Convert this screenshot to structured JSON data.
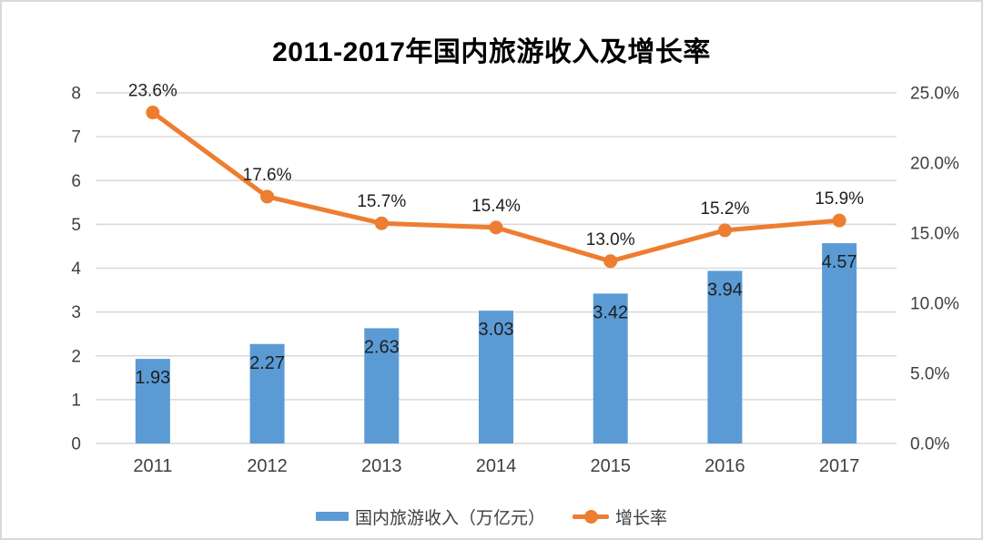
{
  "chart_data": {
    "type": "bar+line combo",
    "title": "2011-2017年国内旅游收入及增长率",
    "categories": [
      "2011",
      "2012",
      "2013",
      "2014",
      "2015",
      "2016",
      "2017"
    ],
    "series": [
      {
        "name": "国内旅游收入（万亿元）",
        "type": "bar",
        "axis": "left",
        "color": "#5B9BD5",
        "values": [
          1.93,
          2.27,
          2.63,
          3.03,
          3.42,
          3.94,
          4.57
        ],
        "labels": [
          "1.93",
          "2.27",
          "2.63",
          "3.03",
          "3.42",
          "3.94",
          "4.57"
        ]
      },
      {
        "name": "增长率",
        "type": "line",
        "axis": "right",
        "color": "#ED7D31",
        "values": [
          23.6,
          17.6,
          15.7,
          15.4,
          13.0,
          15.2,
          15.9
        ],
        "labels": [
          "23.6%",
          "17.6%",
          "15.7%",
          "15.4%",
          "13.0%",
          "15.2%",
          "15.9%"
        ]
      }
    ],
    "left_axis": {
      "min": 0,
      "max": 8,
      "ticks": [
        "0",
        "1",
        "2",
        "3",
        "4",
        "5",
        "6",
        "7",
        "8"
      ]
    },
    "right_axis": {
      "min": 0,
      "max": 25,
      "ticks": [
        "0.0%",
        "5.0%",
        "10.0%",
        "15.0%",
        "20.0%",
        "25.0%"
      ]
    },
    "grid": true,
    "grid_color": "#D9D9D9",
    "axis_text_color": "#404040",
    "data_label_color": "#1f1f1f",
    "legend_position": "bottom",
    "background_color": "#ffffff",
    "frame_border_color": "#d9d9d9"
  }
}
